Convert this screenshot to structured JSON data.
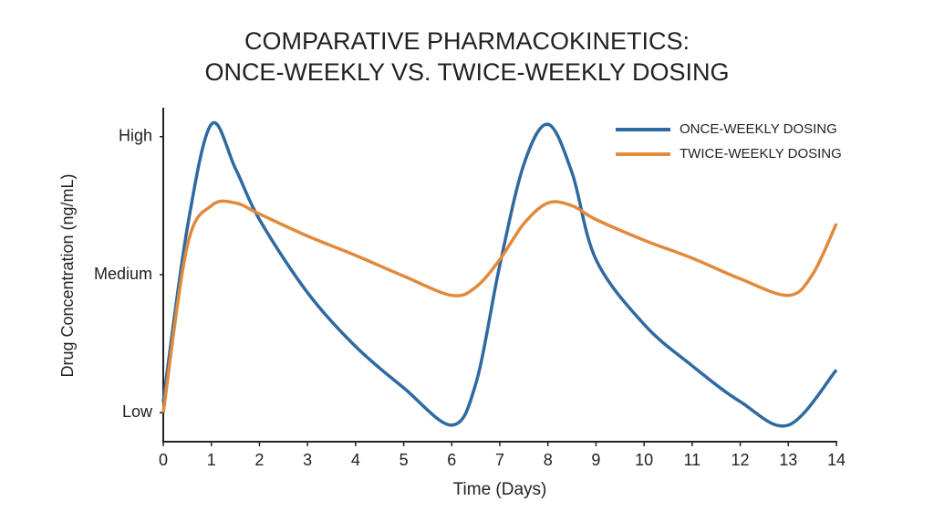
{
  "chart_data": {
    "type": "line",
    "title": [
      "COMPARATIVE PHARMACOKINETICS:",
      "ONCE-WEEKLY VS. TWICE-WEEKLY DOSING"
    ],
    "x_label": "Time (Days)",
    "y_label": "Drug Concentration (ng/mL)",
    "xlim": [
      0,
      14
    ],
    "xticks": [
      0,
      1,
      2,
      3,
      4,
      5,
      6,
      7,
      8,
      9,
      10,
      11,
      12,
      13,
      14
    ],
    "ylim": [
      -0.21,
      2.21
    ],
    "yticks": [
      {
        "value": 0,
        "label": "Low"
      },
      {
        "value": 1,
        "label": "Medium"
      },
      {
        "value": 2,
        "label": "High"
      }
    ],
    "grid": false,
    "legend": "upper right",
    "series": [
      {
        "name": "ONCE-WEEKLY DOSING",
        "color": "#2e6aa1",
        "x": [
          0,
          0.5,
          1,
          1.5,
          2,
          3,
          4,
          5,
          6,
          6.5,
          7,
          7.5,
          8,
          8.5,
          9,
          10,
          11,
          12,
          13,
          14
        ],
        "values": [
          0.08,
          1.34,
          2.09,
          1.77,
          1.4,
          0.87,
          0.48,
          0.18,
          -0.09,
          0.21,
          1.07,
          1.8,
          2.09,
          1.74,
          1.11,
          0.64,
          0.34,
          0.08,
          -0.09,
          0.31
        ]
      },
      {
        "name": "TWICE-WEEKLY DOSING",
        "color": "#e08a3c",
        "x": [
          0,
          0.5,
          1,
          1.5,
          2,
          3,
          4,
          5,
          6,
          6.5,
          7,
          7.5,
          8,
          8.5,
          9,
          10,
          11,
          12,
          13,
          13.5,
          14
        ],
        "values": [
          0,
          1.21,
          1.5,
          1.52,
          1.44,
          1.28,
          1.14,
          0.99,
          0.85,
          0.91,
          1.11,
          1.37,
          1.52,
          1.5,
          1.4,
          1.25,
          1.12,
          0.97,
          0.85,
          1.0,
          1.37
        ]
      }
    ]
  }
}
